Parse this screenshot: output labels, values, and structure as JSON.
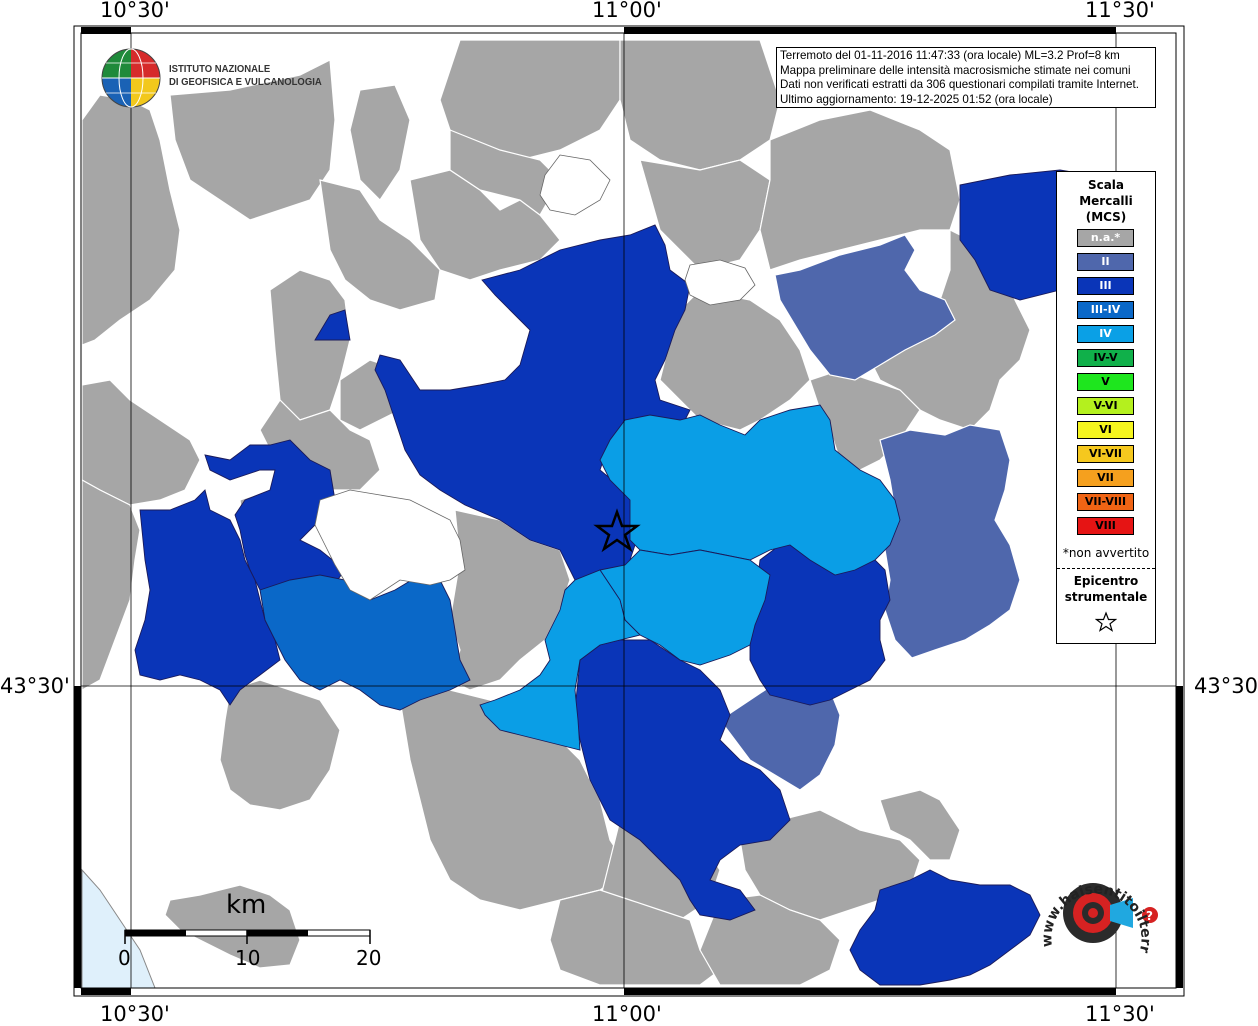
{
  "coords": {
    "top": [
      "10°30'",
      "11°00'",
      "11°30'"
    ],
    "bottom": [
      "10°30'",
      "11°00'",
      "11°30'"
    ],
    "left": "43°30'",
    "right": "43°30'"
  },
  "info": {
    "line1": "Terremoto del 01-11-2016 11:47:33 (ora locale) ML=3.2 Prof=8 km",
    "line2": "Mappa preliminare delle intensità macrosismiche stimate nei comuni",
    "line3": "Dati non verificati estratti da 306 questionari compilati tramite Internet.",
    "line4": "Ultimo aggiornamento: 19-12-2025 01:52 (ora locale)"
  },
  "logo": {
    "line1": "ISTITUTO NAZIONALE",
    "line2": "DI GEOFISICA E VULCANOLOGIA",
    "haisentito": "www.haisentitoilterremoto.it"
  },
  "legend": {
    "title1": "Scala",
    "title2": "Mercalli",
    "title3": "(MCS)",
    "items": [
      {
        "label": "n.a.*",
        "color": "#a6a6a6",
        "text": "#ffffff"
      },
      {
        "label": "II",
        "color": "#4f67ac",
        "text": "#ffffff"
      },
      {
        "label": "III",
        "color": "#0a35b8",
        "text": "#ffffff"
      },
      {
        "label": "III-IV",
        "color": "#0a68c8",
        "text": "#ffffff"
      },
      {
        "label": "IV",
        "color": "#0aa0e6",
        "text": "#ffffff"
      },
      {
        "label": "IV-V",
        "color": "#10b04a",
        "text": "#000000"
      },
      {
        "label": "V",
        "color": "#1ee61e",
        "text": "#000000"
      },
      {
        "label": "V-VI",
        "color": "#b4f01e",
        "text": "#000000"
      },
      {
        "label": "VI",
        "color": "#f5f51e",
        "text": "#000000"
      },
      {
        "label": "VI-VII",
        "color": "#f5c81e",
        "text": "#000000"
      },
      {
        "label": "VII",
        "color": "#f5a01e",
        "text": "#000000"
      },
      {
        "label": "VII-VIII",
        "color": "#f06414",
        "text": "#000000"
      },
      {
        "label": "VIII",
        "color": "#e61414",
        "text": "#000000"
      }
    ],
    "note": "*non avvertito",
    "epi1": "Epicentro",
    "epi2": "strumentale"
  },
  "scalebar": {
    "unit": "km",
    "labels": [
      "0",
      "10",
      "20"
    ]
  }
}
